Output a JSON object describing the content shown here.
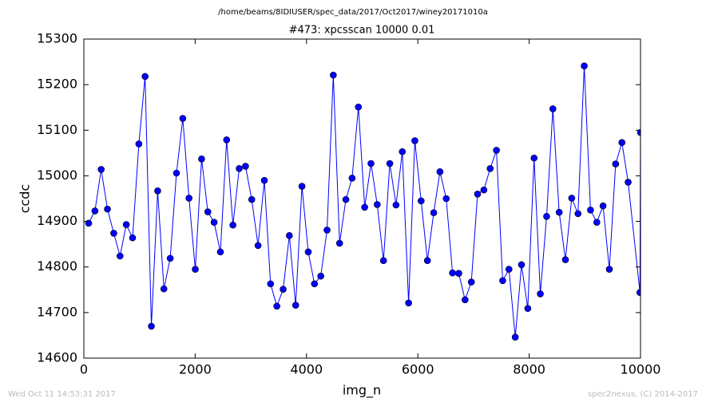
{
  "chart_data": {
    "type": "line",
    "suptitle": "/home/beams/8IDIUSER/spec_data/2017/Oct2017/winey20171010a",
    "title": "#473: xpcsscan 10000 0.01",
    "xlabel": "img_n",
    "ylabel": "ccdc",
    "footer_left": "Wed Oct 11 14:53:31 2017",
    "footer_right": "spec2nexus, (C) 2014-2017",
    "color": "#0000ff",
    "x": [
      86,
      199,
      311,
      424,
      537,
      650,
      762,
      875,
      988,
      1100,
      1213,
      1326,
      1438,
      1551,
      1664,
      1777,
      1889,
      2002,
      2115,
      2227,
      2340,
      2453,
      2565,
      2678,
      2791,
      2904,
      3016,
      3129,
      3242,
      3354,
      3467,
      3580,
      3692,
      3805,
      3918,
      4031,
      4143,
      4256,
      4369,
      4481,
      4594,
      4707,
      4819,
      4932,
      5045,
      5158,
      5270,
      5383,
      5496,
      5608,
      5721,
      5834,
      5946,
      6059,
      6172,
      6285,
      6397,
      6510,
      6623,
      6735,
      6848,
      6961,
      7073,
      7186,
      7299,
      7412,
      7524,
      7637,
      7750,
      7862,
      7975,
      8088,
      8200,
      8313,
      8426,
      8539,
      8651,
      8764,
      8877,
      8989,
      9102,
      9215,
      9327,
      9440,
      9553,
      9666,
      9778,
      9990,
      10000
    ],
    "values": [
      14896,
      14923,
      15014,
      14927,
      14874,
      14824,
      14893,
      14864,
      15070,
      15218,
      14670,
      14967,
      14752,
      14819,
      15006,
      15126,
      14951,
      14795,
      15037,
      14921,
      14898,
      14833,
      15079,
      14892,
      15016,
      15021,
      14948,
      14847,
      14990,
      14763,
      14714,
      14751,
      14869,
      14716,
      14977,
      14833,
      14763,
      14780,
      14881,
      15221,
      14852,
      14948,
      14995,
      15151,
      14931,
      15027,
      14937,
      14814,
      15027,
      14936,
      15053,
      14721,
      15077,
      14945,
      14814,
      14919,
      15009,
      14950,
      14787,
      14786,
      14728,
      14767,
      14960,
      14969,
      15016,
      15056,
      14770,
      14795,
      14646,
      14805,
      14709,
      15039,
      14741,
      14911,
      15147,
      14920,
      14816,
      14951,
      14917,
      15241,
      14925,
      14898,
      14934,
      14795,
      15026,
      15073,
      14986,
      14744,
      15095
    ],
    "xlim": [
      0,
      10000
    ],
    "xticks": [
      0,
      2000,
      4000,
      6000,
      8000,
      10000
    ],
    "ylim": [
      14600,
      15300
    ],
    "yticks": [
      14600,
      14700,
      14800,
      14900,
      15000,
      15100,
      15200,
      15300
    ]
  }
}
